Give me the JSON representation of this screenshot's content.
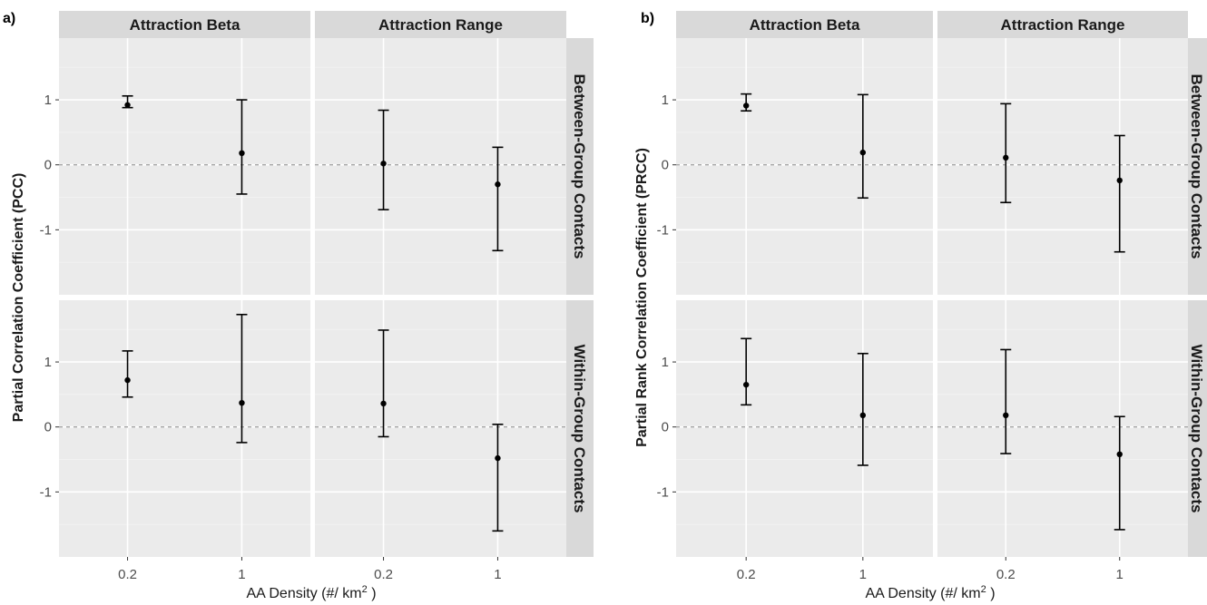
{
  "colors": {
    "panel_bg": "#ebebeb",
    "strip_bg": "#d9d9d9",
    "grid_major": "#ffffff",
    "grid_minor": "#f4f4f4",
    "zero_line": "#a6a6a6",
    "mark": "#000000"
  },
  "chart_data": [
    {
      "panel_label": "a)",
      "type": "scatter",
      "mark": "point with error bars",
      "ylabel": "Partial Correlation Coefficient (PCC)",
      "xlabel_main": "AA Density (#/ km",
      "xlabel_sup": "2",
      "xlabel_end": " )",
      "facet_cols": [
        "Attraction Beta",
        "Attraction Range"
      ],
      "facet_rows": [
        "Between-Group Contacts",
        "Within-Group Contacts"
      ],
      "x_categories": [
        "0.2",
        "1"
      ],
      "y_ticks": [
        [
          "-1",
          "0",
          "1"
        ],
        [
          "-1",
          "0",
          "1"
        ]
      ],
      "ylim": [
        [
          -2.0,
          1.95
        ],
        [
          -2.0,
          1.95
        ]
      ],
      "reference_line": 0,
      "grid": true,
      "cells": [
        [
          {
            "x": [
              "0.2",
              "1"
            ],
            "y": [
              0.92,
              0.18
            ],
            "lower": [
              0.88,
              -0.45
            ],
            "upper": [
              1.06,
              1.0
            ]
          },
          {
            "x": [
              "0.2",
              "1"
            ],
            "y": [
              0.02,
              -0.3
            ],
            "lower": [
              -0.69,
              -1.32
            ],
            "upper": [
              0.84,
              0.27
            ]
          }
        ],
        [
          {
            "x": [
              "0.2",
              "1"
            ],
            "y": [
              0.72,
              0.37
            ],
            "lower": [
              0.46,
              -0.24
            ],
            "upper": [
              1.17,
              1.73
            ]
          },
          {
            "x": [
              "0.2",
              "1"
            ],
            "y": [
              0.36,
              -0.48
            ],
            "lower": [
              -0.15,
              -1.6
            ],
            "upper": [
              1.49,
              0.04
            ]
          }
        ]
      ]
    },
    {
      "panel_label": "b)",
      "type": "scatter",
      "mark": "point with error bars",
      "ylabel": "Partial Rank Correlation Coefficient (PRCC)",
      "xlabel_main": "AA Density (#/ km",
      "xlabel_sup": "2",
      "xlabel_end": " )",
      "facet_cols": [
        "Attraction Beta",
        "Attraction Range"
      ],
      "facet_rows": [
        "Between-Group Contacts",
        "Within-Group Contacts"
      ],
      "x_categories": [
        "0.2",
        "1"
      ],
      "y_ticks": [
        [
          "-1",
          "0",
          "1"
        ],
        [
          "-1",
          "0",
          "1"
        ]
      ],
      "ylim": [
        [
          -2.0,
          1.95
        ],
        [
          -2.0,
          1.95
        ]
      ],
      "reference_line": 0,
      "grid": true,
      "cells": [
        [
          {
            "x": [
              "0.2",
              "1"
            ],
            "y": [
              0.91,
              0.19
            ],
            "lower": [
              0.83,
              -0.51
            ],
            "upper": [
              1.09,
              1.08
            ]
          },
          {
            "x": [
              "0.2",
              "1"
            ],
            "y": [
              0.11,
              -0.24
            ],
            "lower": [
              -0.58,
              -1.34
            ],
            "upper": [
              0.94,
              0.45
            ]
          }
        ],
        [
          {
            "x": [
              "0.2",
              "1"
            ],
            "y": [
              0.65,
              0.18
            ],
            "lower": [
              0.34,
              -0.59
            ],
            "upper": [
              1.36,
              1.13
            ]
          },
          {
            "x": [
              "0.2",
              "1"
            ],
            "y": [
              0.18,
              -0.42
            ],
            "lower": [
              -0.41,
              -1.58
            ],
            "upper": [
              1.19,
              0.16
            ]
          }
        ]
      ]
    }
  ]
}
